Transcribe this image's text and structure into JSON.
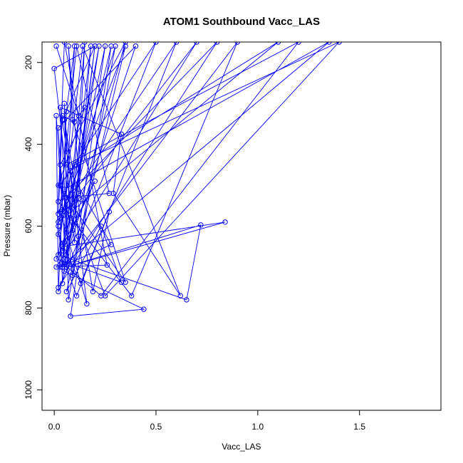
{
  "chart_data": {
    "type": "scatter",
    "title": "ATOM1 Southbound Vacc_LAS",
    "xlabel": "Vacc_LAS",
    "ylabel": "Pressure (mbar)",
    "xlim": [
      -0.06,
      1.9
    ],
    "ylim": [
      1050,
      150
    ],
    "y_reversed": true,
    "x_ticks": [
      0.0,
      0.5,
      1.0,
      1.5
    ],
    "x_tick_labels": [
      "0.0",
      "0.5",
      "1.0",
      "1.5"
    ],
    "y_ticks": [
      200,
      400,
      600,
      800,
      1000
    ],
    "y_tick_labels": [
      "200",
      "400",
      "600",
      "800",
      "1000"
    ],
    "grid": false,
    "legend": "none",
    "line_color": "#0000ff",
    "series": [
      {
        "points": [
          [
            0.01,
            160
          ],
          [
            0.12,
            330
          ],
          [
            0.04,
            700
          ],
          [
            0.1,
            160
          ],
          [
            0.06,
            320
          ],
          [
            0.02,
            760
          ],
          [
            0.5,
            150
          ],
          [
            0.03,
            500
          ],
          [
            0.09,
            610
          ],
          [
            0.2,
            160
          ],
          [
            0.0,
            215
          ],
          [
            0.1,
            640
          ],
          [
            0.15,
            150
          ],
          [
            0.08,
            580
          ],
          [
            0.05,
            300
          ],
          [
            0.07,
            780
          ],
          [
            0.3,
            160
          ],
          [
            0.02,
            620
          ],
          [
            0.13,
            740
          ],
          [
            0.6,
            150
          ],
          [
            0.04,
            560
          ],
          [
            0.01,
            330
          ],
          [
            0.02,
            750
          ],
          [
            0.8,
            150
          ],
          [
            0.06,
            530
          ],
          [
            0.27,
            520
          ],
          [
            0.11,
            160
          ],
          [
            0.02,
            600
          ],
          [
            0.04,
            700
          ],
          [
            0.35,
            150
          ],
          [
            0.03,
            450
          ],
          [
            0.09,
            720
          ],
          [
            0.25,
            160
          ],
          [
            0.05,
            640
          ],
          [
            0.02,
            360
          ],
          [
            0.4,
            160
          ],
          [
            0.06,
            670
          ],
          [
            0.12,
            520
          ],
          [
            0.18,
            160
          ],
          [
            0.04,
            740
          ],
          [
            0.03,
            580
          ],
          [
            0.7,
            150
          ],
          [
            0.01,
            700
          ],
          [
            0.26,
            695
          ],
          [
            0.05,
            150
          ],
          [
            0.02,
            540
          ],
          [
            0.38,
            770
          ],
          [
            0.9,
            150
          ],
          [
            0.07,
            690
          ],
          [
            0.03,
            310
          ],
          [
            0.33,
            375
          ],
          [
            0.29,
            520
          ],
          [
            0.62,
            770
          ],
          [
            0.14,
            160
          ],
          [
            0.02,
            670
          ],
          [
            0.65,
            780
          ],
          [
            0.72,
            597
          ],
          [
            0.06,
            700
          ],
          [
            0.84,
            590
          ],
          [
            0.04,
            650
          ],
          [
            0.22,
            160
          ],
          [
            0.05,
            710
          ],
          [
            0.44,
            803
          ],
          [
            0.08,
            820
          ],
          [
            0.28,
            160
          ],
          [
            0.04,
            660
          ],
          [
            0.2,
            490
          ],
          [
            0.01,
            680
          ],
          [
            0.33,
            737
          ],
          [
            0.23,
            600
          ],
          [
            0.06,
            760
          ],
          [
            0.35,
            160
          ],
          [
            0.02,
            590
          ],
          [
            1.1,
            150
          ],
          [
            0.08,
            465
          ],
          [
            0.04,
            690
          ],
          [
            0.23,
            770
          ],
          [
            1.2,
            150
          ],
          [
            0.06,
            450
          ],
          [
            0.28,
            645
          ],
          [
            0.03,
            700
          ],
          [
            1.35,
            150
          ],
          [
            0.05,
            510
          ],
          [
            0.25,
            770
          ],
          [
            1.4,
            150
          ],
          [
            0.1,
            450
          ],
          [
            0.02,
            570
          ],
          [
            0.04,
            330
          ],
          [
            0.1,
            345
          ],
          [
            0.15,
            310
          ],
          [
            0.02,
            500
          ],
          [
            0.35,
            737
          ],
          [
            0.09,
            340
          ],
          [
            0.07,
            160
          ],
          [
            0.13,
            535
          ],
          [
            0.03,
            565
          ],
          [
            0.16,
            790
          ],
          [
            0.05,
            340
          ],
          [
            0.19,
            760
          ],
          [
            0.27,
            565
          ],
          [
            0.11,
            770
          ],
          [
            0.06,
            700
          ],
          [
            0.2,
            160
          ],
          [
            0.04,
            340
          ],
          [
            0.12,
            625
          ]
        ]
      }
    ]
  }
}
